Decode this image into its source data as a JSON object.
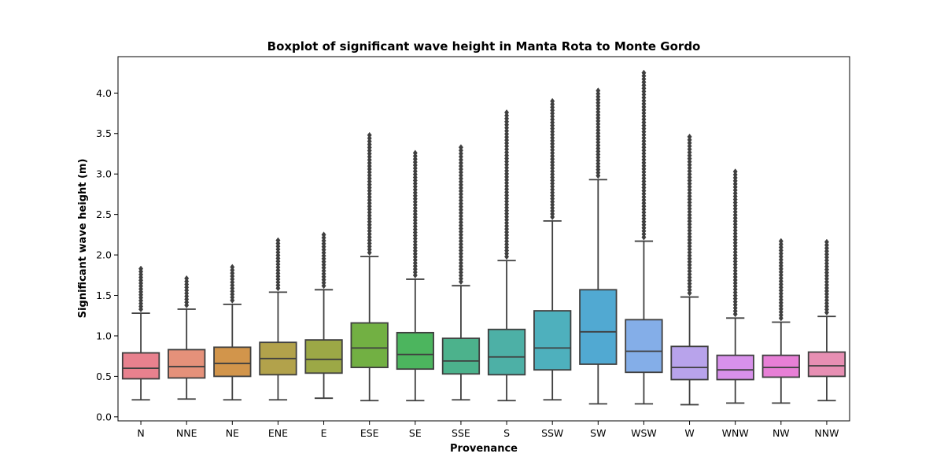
{
  "chart_data": {
    "type": "box",
    "title": "Boxplot of significant wave height in Manta Rota to Monte Gordo",
    "xlabel": "Provenance",
    "ylabel": "Significant wave height (m)",
    "ylim": [
      -0.05,
      4.45
    ],
    "yticks": [
      "0.0",
      "0.5",
      "1.0",
      "1.5",
      "2.0",
      "2.5",
      "3.0",
      "3.5",
      "4.0"
    ],
    "grid": false,
    "categories": [
      "N",
      "NNE",
      "NE",
      "ENE",
      "E",
      "ESE",
      "SE",
      "SSE",
      "S",
      "SSW",
      "SW",
      "WSW",
      "W",
      "WNW",
      "NW",
      "NNW"
    ],
    "boxes": [
      {
        "category": "N",
        "color": "#e8818e",
        "whisker_low": 0.21,
        "q1": 0.47,
        "median": 0.6,
        "q3": 0.79,
        "whisker_high": 1.28,
        "outlier_max": 1.83
      },
      {
        "category": "NNE",
        "color": "#e5917a",
        "whisker_low": 0.22,
        "q1": 0.48,
        "median": 0.62,
        "q3": 0.83,
        "whisker_high": 1.33,
        "outlier_max": 1.71
      },
      {
        "category": "NE",
        "color": "#d2954b",
        "whisker_low": 0.21,
        "q1": 0.5,
        "median": 0.66,
        "q3": 0.86,
        "whisker_high": 1.39,
        "outlier_max": 1.85
      },
      {
        "category": "ENE",
        "color": "#b2a24b",
        "whisker_low": 0.21,
        "q1": 0.52,
        "median": 0.72,
        "q3": 0.92,
        "whisker_high": 1.54,
        "outlier_max": 2.18
      },
      {
        "category": "E",
        "color": "#9ca846",
        "whisker_low": 0.23,
        "q1": 0.54,
        "median": 0.71,
        "q3": 0.95,
        "whisker_high": 1.57,
        "outlier_max": 2.25
      },
      {
        "category": "ESE",
        "color": "#72b043",
        "whisker_low": 0.2,
        "q1": 0.61,
        "median": 0.85,
        "q3": 1.16,
        "whisker_high": 1.98,
        "outlier_max": 3.48
      },
      {
        "category": "SE",
        "color": "#4cb55e",
        "whisker_low": 0.2,
        "q1": 0.59,
        "median": 0.77,
        "q3": 1.04,
        "whisker_high": 1.7,
        "outlier_max": 3.26
      },
      {
        "category": "SSE",
        "color": "#4cb28c",
        "whisker_low": 0.21,
        "q1": 0.53,
        "median": 0.69,
        "q3": 0.97,
        "whisker_high": 1.62,
        "outlier_max": 3.33
      },
      {
        "category": "S",
        "color": "#4db0a6",
        "whisker_low": 0.2,
        "q1": 0.52,
        "median": 0.74,
        "q3": 1.08,
        "whisker_high": 1.93,
        "outlier_max": 3.76
      },
      {
        "category": "SSW",
        "color": "#4eb0bd",
        "whisker_low": 0.21,
        "q1": 0.58,
        "median": 0.85,
        "q3": 1.31,
        "whisker_high": 2.42,
        "outlier_max": 3.9
      },
      {
        "category": "SW",
        "color": "#51a9d2",
        "whisker_low": 0.16,
        "q1": 0.65,
        "median": 1.05,
        "q3": 1.57,
        "whisker_high": 2.93,
        "outlier_max": 4.03
      },
      {
        "category": "WSW",
        "color": "#84aee8",
        "whisker_low": 0.16,
        "q1": 0.55,
        "median": 0.81,
        "q3": 1.2,
        "whisker_high": 2.17,
        "outlier_max": 4.25
      },
      {
        "category": "W",
        "color": "#b8a3eb",
        "whisker_low": 0.15,
        "q1": 0.46,
        "median": 0.61,
        "q3": 0.87,
        "whisker_high": 1.48,
        "outlier_max": 3.46
      },
      {
        "category": "WNW",
        "color": "#d891eb",
        "whisker_low": 0.17,
        "q1": 0.46,
        "median": 0.58,
        "q3": 0.76,
        "whisker_high": 1.22,
        "outlier_max": 3.03
      },
      {
        "category": "NW",
        "color": "#e77fd6",
        "whisker_low": 0.17,
        "q1": 0.49,
        "median": 0.61,
        "q3": 0.76,
        "whisker_high": 1.17,
        "outlier_max": 2.17
      },
      {
        "category": "NNW",
        "color": "#e78fb3",
        "whisker_low": 0.2,
        "q1": 0.5,
        "median": 0.63,
        "q3": 0.8,
        "whisker_high": 1.24,
        "outlier_max": 2.16
      }
    ],
    "line_color": "#3f3f3f"
  }
}
